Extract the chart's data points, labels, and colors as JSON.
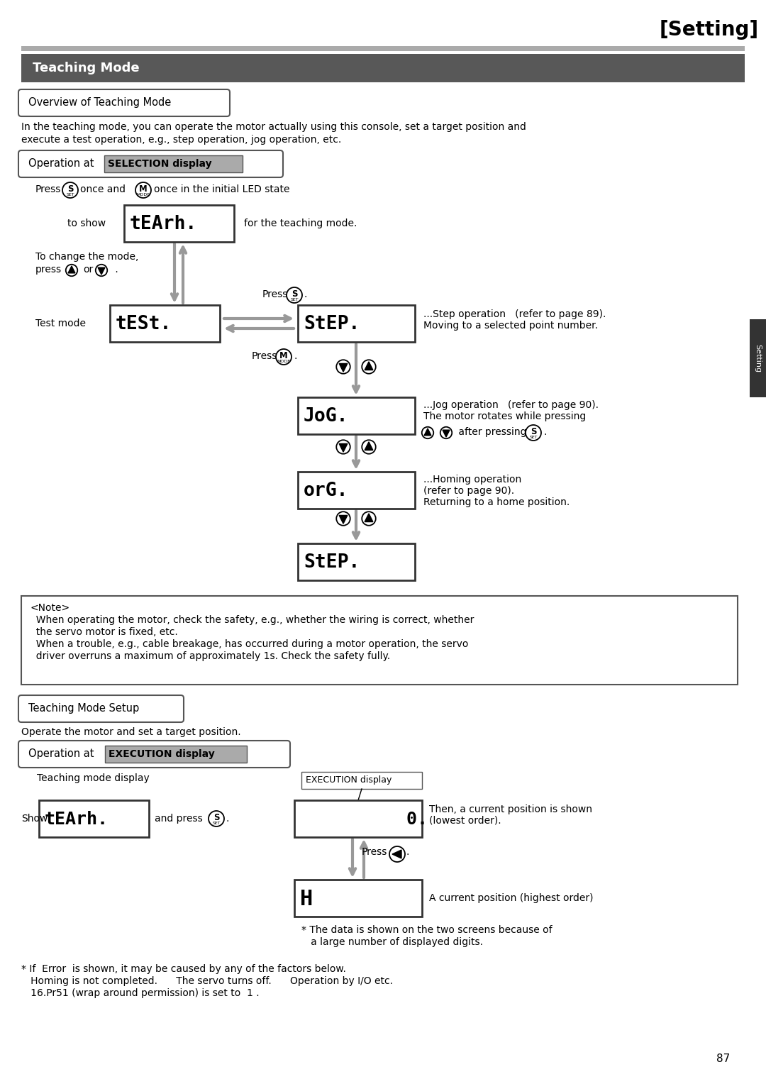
{
  "title_setting": "[Setting]",
  "section_title": "Teaching Mode",
  "sub1_title": "Overview of Teaching Mode",
  "intro_line1": "In the teaching mode, you can operate the motor actually using this console, set a target position and",
  "intro_line2": "execute a test operation, e.g., step operation, jog operation, etc.",
  "note_line1": "<Note>",
  "note_line2": "  When operating the motor, check the safety, e.g., whether the wiring is correct, whether",
  "note_line3": "  the servo motor is fixed, etc.",
  "note_line4": "  When a trouble, e.g., cable breakage, has occurred during a motor operation, the servo",
  "note_line5": "  driver overruns a maximum of approximately 1s. Check the safety fully.",
  "sub3_title": "Teaching Mode Setup",
  "operate_text": "Operate the motor and set a target position.",
  "two_screens1": "* The data is shown on the two screens because of",
  "two_screens2": "   a large number of displayed digits.",
  "error_line1": "* If  Error  is shown, it may be caused by any of the factors below.",
  "error_line2": "   Homing is not completed.      The servo turns off.      Operation by I/O etc.",
  "error_line3": "   16.Pr51 (wrap around permission) is set to  1 .",
  "page_number": "87",
  "side_tab_text": "Setting",
  "bg_color": "#ffffff",
  "header_color": "#585858",
  "arrow_color": "#999999"
}
